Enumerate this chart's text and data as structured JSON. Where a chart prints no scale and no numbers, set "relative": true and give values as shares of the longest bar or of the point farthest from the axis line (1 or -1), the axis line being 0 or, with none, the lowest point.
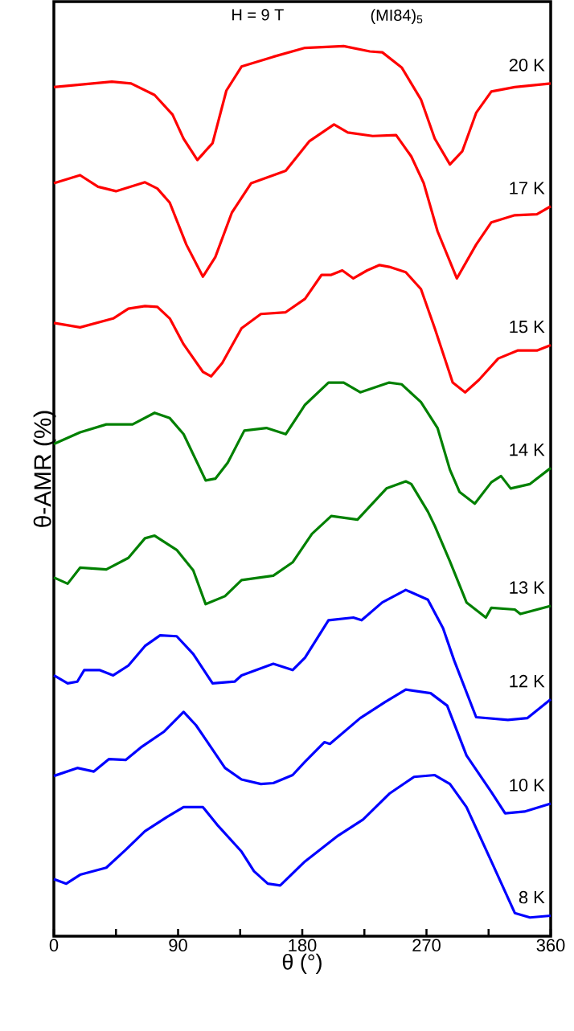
{
  "chart_data": {
    "type": "line",
    "title": "H = 9 T",
    "subtitle": "(MI84)$_{5}$",
    "xlabel": "θ (°)",
    "ylabel": "θ-AMR (%)",
    "relative": true,
    "xlim": [
      0,
      360
    ],
    "xticks": [
      0,
      {
        "value": 45,
        "label": null
      },
      90,
      {
        "value": 135,
        "label": null
      },
      180,
      {
        "value": 225,
        "label": null
      },
      270,
      {
        "value": 315,
        "label": null
      },
      360
    ],
    "tick_labels": "x",
    "legend": false,
    "grid": false,
    "series": [
      {
        "name": "20 K",
        "color": "#ff0000",
        "x": [
          0,
          28,
          42,
          56,
          73,
          86,
          94,
          104,
          115,
          125,
          136,
          159,
          182,
          210,
          229,
          238,
          252,
          266,
          276,
          287,
          296,
          306,
          317,
          334,
          360
        ],
        "values": [
          0.954,
          0.958,
          0.96,
          0.958,
          0.945,
          0.923,
          0.896,
          0.872,
          0.891,
          0.95,
          0.977,
          0.988,
          0.998,
          1.0,
          0.994,
          0.993,
          0.976,
          0.94,
          0.896,
          0.867,
          0.882,
          0.925,
          0.949,
          0.954,
          0.958
        ]
      },
      {
        "name": "17 K",
        "color": "#ff0000",
        "x": [
          0,
          19,
          32,
          45,
          66,
          75,
          84,
          96,
          108,
          117,
          129,
          143,
          168,
          185,
          203,
          213,
          231,
          248,
          259,
          268,
          278,
          292,
          306,
          317,
          334,
          350,
          360
        ],
        "values": [
          0.846,
          0.855,
          0.842,
          0.837,
          0.847,
          0.84,
          0.824,
          0.777,
          0.741,
          0.763,
          0.813,
          0.846,
          0.86,
          0.893,
          0.912,
          0.903,
          0.899,
          0.9,
          0.876,
          0.846,
          0.792,
          0.739,
          0.777,
          0.802,
          0.81,
          0.811,
          0.82
        ]
      },
      {
        "name": "15 K",
        "color": "#ff0000",
        "x": [
          0,
          19,
          43,
          54,
          66,
          75,
          84,
          94,
          108,
          114,
          122,
          136,
          150,
          168,
          182,
          194,
          201,
          209,
          217,
          227,
          236,
          243,
          255,
          266,
          276,
          289,
          298,
          308,
          322,
          336,
          350,
          360
        ],
        "values": [
          0.689,
          0.684,
          0.694,
          0.705,
          0.708,
          0.707,
          0.694,
          0.665,
          0.634,
          0.629,
          0.644,
          0.683,
          0.699,
          0.701,
          0.716,
          0.743,
          0.743,
          0.748,
          0.739,
          0.748,
          0.754,
          0.752,
          0.746,
          0.727,
          0.683,
          0.622,
          0.611,
          0.625,
          0.649,
          0.658,
          0.658,
          0.664
        ]
      },
      {
        "name": "14 K",
        "color": "#008000",
        "x": [
          0,
          19,
          38,
          57,
          73,
          84,
          94,
          110,
          117,
          126,
          138,
          154,
          168,
          182,
          199,
          210,
          222,
          243,
          252,
          266,
          278,
          287,
          294,
          305,
          317,
          324,
          331,
          345,
          360
        ],
        "values": [
          0.553,
          0.566,
          0.575,
          0.575,
          0.588,
          0.582,
          0.564,
          0.512,
          0.514,
          0.532,
          0.568,
          0.571,
          0.564,
          0.597,
          0.622,
          0.622,
          0.611,
          0.622,
          0.62,
          0.6,
          0.571,
          0.524,
          0.499,
          0.486,
          0.51,
          0.517,
          0.503,
          0.508,
          0.526
        ]
      },
      {
        "name": "13 K",
        "color": "#008000",
        "x": [
          0,
          10,
          19,
          38,
          54,
          66,
          73,
          89,
          101,
          110,
          124,
          136,
          159,
          173,
          187,
          201,
          220,
          241,
          255,
          259,
          271,
          276,
          287,
          299,
          313,
          317,
          334,
          338,
          360
        ],
        "values": [
          0.403,
          0.396,
          0.414,
          0.412,
          0.425,
          0.447,
          0.45,
          0.434,
          0.411,
          0.373,
          0.382,
          0.4,
          0.405,
          0.42,
          0.452,
          0.472,
          0.468,
          0.503,
          0.511,
          0.508,
          0.477,
          0.461,
          0.421,
          0.375,
          0.358,
          0.369,
          0.367,
          0.362,
          0.371
        ]
      },
      {
        "name": "12 K",
        "color": "#0000ff",
        "x": [
          0,
          10,
          17,
          22,
          33,
          43,
          54,
          66,
          77,
          89,
          101,
          115,
          131,
          136,
          159,
          173,
          182,
          199,
          217,
          223,
          238,
          255,
          271,
          282,
          290,
          306,
          329,
          343,
          360
        ],
        "values": [
          0.293,
          0.284,
          0.286,
          0.299,
          0.299,
          0.293,
          0.304,
          0.326,
          0.338,
          0.337,
          0.317,
          0.284,
          0.286,
          0.293,
          0.306,
          0.299,
          0.313,
          0.355,
          0.358,
          0.355,
          0.375,
          0.389,
          0.378,
          0.346,
          0.31,
          0.246,
          0.243,
          0.245,
          0.266
        ]
      },
      {
        "name": "10 K",
        "color": "#0000ff",
        "x": [
          0,
          17,
          29,
          40,
          52,
          63,
          80,
          94,
          103,
          110,
          124,
          136,
          150,
          159,
          173,
          182,
          196,
          200,
          222,
          240,
          255,
          273,
          285,
          299,
          317,
          327,
          341,
          360
        ],
        "values": [
          0.18,
          0.189,
          0.185,
          0.199,
          0.198,
          0.212,
          0.23,
          0.252,
          0.237,
          0.221,
          0.189,
          0.176,
          0.171,
          0.172,
          0.181,
          0.196,
          0.218,
          0.216,
          0.245,
          0.263,
          0.277,
          0.273,
          0.259,
          0.203,
          0.162,
          0.138,
          0.14,
          0.149
        ]
      },
      {
        "name": "8 K",
        "color": "#0000ff",
        "x": [
          0,
          9,
          19,
          38,
          52,
          66,
          82,
          94,
          108,
          119,
          136,
          145,
          155,
          164,
          182,
          206,
          224,
          243,
          261,
          276,
          287,
          299,
          317,
          334,
          345,
          360
        ],
        "values": [
          0.064,
          0.059,
          0.069,
          0.077,
          0.097,
          0.118,
          0.134,
          0.145,
          0.145,
          0.124,
          0.095,
          0.073,
          0.059,
          0.057,
          0.084,
          0.113,
          0.131,
          0.16,
          0.179,
          0.181,
          0.171,
          0.145,
          0.084,
          0.026,
          0.021,
          0.023
        ]
      }
    ]
  }
}
